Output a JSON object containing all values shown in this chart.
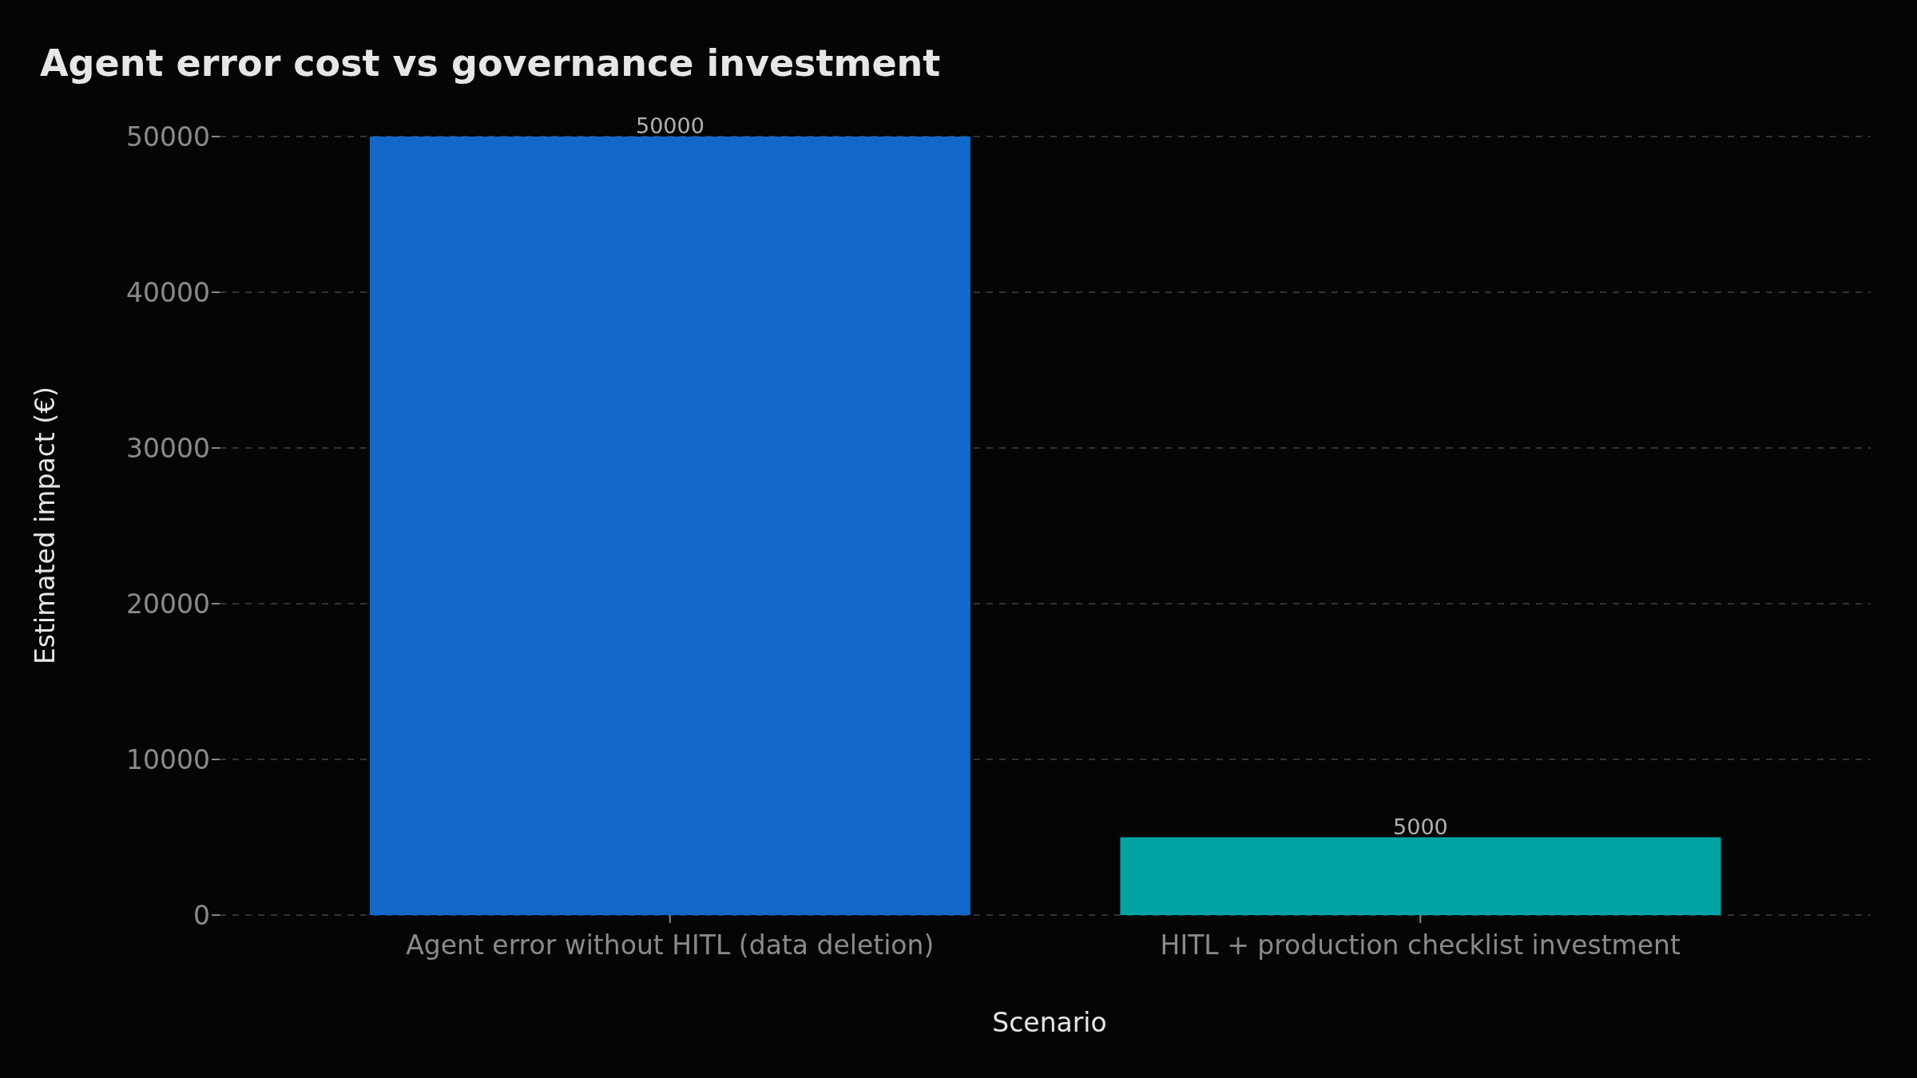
{
  "chart_data": {
    "type": "bar",
    "title": "Agent error cost vs governance investment",
    "xlabel": "Scenario",
    "ylabel": "Estimated impact (€)",
    "categories": [
      "Agent error without HITL (data deletion)",
      "HITL + production checklist investment"
    ],
    "values": [
      50000,
      5000
    ],
    "colors": [
      "#1268c9",
      "#00a3a3"
    ],
    "ylim": [
      0,
      50000
    ],
    "yticks": [
      0,
      10000,
      20000,
      30000,
      40000,
      50000
    ],
    "grid": "y",
    "data_labels": true,
    "legend": false
  }
}
